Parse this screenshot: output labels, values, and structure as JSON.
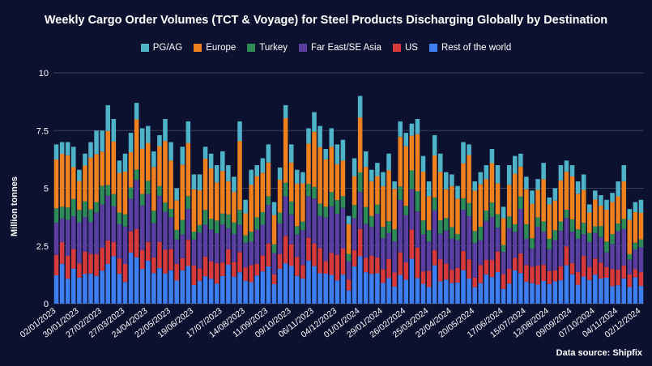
{
  "chart_data": {
    "type": "bar",
    "stacked": true,
    "title": "Weekly Cargo Order Volumes (TCT & Voyage) for Steel Products Discharging Globally by Destination",
    "ylabel": "Million tonnes",
    "ylim": [
      0,
      10
    ],
    "yticks": [
      0,
      2.5,
      5,
      7.5,
      10
    ],
    "ytick_labels": [
      "0",
      "2.5",
      "5",
      "7.5",
      "10"
    ],
    "grid": true,
    "legend_position": "top",
    "source": "Data source: Shipfix",
    "x_tick_labels": [
      "02/01/2023",
      "30/01/2023",
      "27/02/2023",
      "27/03/2023",
      "24/04/2023",
      "22/05/2023",
      "19/06/2023",
      "17/07/2023",
      "14/08/2023",
      "11/09/2023",
      "09/10/2023",
      "06/11/2023",
      "04/12/2023",
      "01/01/2024",
      "29/01/2024",
      "26/02/2024",
      "25/03/2024",
      "22/04/2024",
      "20/05/2024",
      "17/06/2024",
      "15/07/2024",
      "12/08/2024",
      "09/09/2024",
      "07/10/2024",
      "04/11/2024",
      "02/12/2024"
    ],
    "series_order_bottom_to_top": [
      "Rest of the world",
      "US",
      "Far East/SE Asia",
      "Turkey",
      "Europe",
      "PG/AG"
    ],
    "series": [
      {
        "name": "PG/AG",
        "color": "#4fb3c8"
      },
      {
        "name": "Europe",
        "color": "#f0801e"
      },
      {
        "name": "Turkey",
        "color": "#2e8b57"
      },
      {
        "name": "Far East/SE Asia",
        "color": "#5a3fa0"
      },
      {
        "name": "US",
        "color": "#d63a3a"
      },
      {
        "name": "Rest of the world",
        "color": "#3d7ff0"
      }
    ],
    "totals": [
      6.9,
      7.0,
      7.0,
      6.8,
      5.8,
      6.5,
      7.0,
      7.5,
      7.5,
      8.6,
      8.0,
      6.2,
      6.5,
      7.4,
      8.7,
      7.6,
      7.7,
      6.6,
      7.3,
      8.0,
      7.0,
      5.0,
      6.8,
      7.9,
      5.6,
      5.6,
      6.8,
      6.5,
      6.0,
      6.6,
      6.0,
      5.5,
      7.9,
      4.5,
      5.8,
      6.0,
      6.3,
      6.9,
      4.4,
      5.9,
      8.6,
      6.9,
      5.8,
      5.7,
      7.6,
      8.3,
      7.7,
      6.7,
      7.6,
      6.9,
      7.1,
      3.8,
      6.3,
      9.0,
      6.6,
      5.8,
      6.1,
      5.7,
      6.5,
      5.3,
      7.9,
      7.4,
      7.8,
      8.0,
      6.4,
      5.3,
      7.3,
      6.5,
      5.7,
      5.6,
      5.1,
      7.0,
      6.9,
      5.3,
      5.7,
      6.0,
      6.7,
      6.0,
      4.2,
      6.0,
      6.4,
      6.5,
      5.5,
      4.9,
      5.4,
      6.1,
      4.6,
      5.0,
      6.0,
      6.2,
      6.0,
      5.3,
      5.6,
      4.3,
      4.9,
      4.7,
      4.5,
      4.8,
      5.3,
      6.0,
      4.1,
      4.4,
      4.5
    ],
    "shares": {
      "Rest of the world": 0.2,
      "US": 0.12,
      "Far East/SE Asia": 0.22,
      "Turkey": 0.08,
      "Europe": 0.28,
      "PG/AG": 0.1
    }
  }
}
